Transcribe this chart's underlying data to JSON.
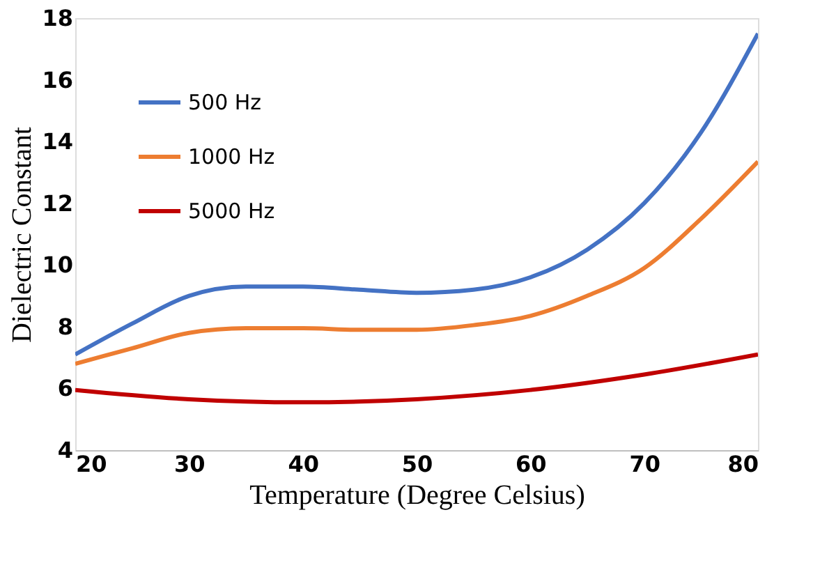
{
  "chart_data": {
    "type": "line",
    "xlabel": "Temperature (Degree Celsius)",
    "ylabel": "Dielectric Constant",
    "xlim": [
      20,
      80
    ],
    "xticks": [
      20,
      30,
      40,
      50,
      60,
      70,
      80
    ],
    "ylim": [
      4,
      18
    ],
    "yticks": [
      4,
      6,
      8,
      10,
      12,
      14,
      16,
      18
    ],
    "grid": false,
    "legend": "top left",
    "marker": "none",
    "line_style": "solid",
    "series": [
      {
        "name": "500 Hz",
        "color": "#4472c4",
        "x": [
          20,
          25,
          30,
          35,
          40,
          45,
          50,
          55,
          60,
          65,
          70,
          75,
          80
        ],
        "values": [
          7.1,
          8.1,
          9.0,
          9.3,
          9.3,
          9.2,
          9.1,
          9.2,
          9.6,
          10.5,
          12.0,
          14.3,
          17.5
        ]
      },
      {
        "name": "1000 Hz",
        "color": "#ed7d31",
        "x": [
          20,
          25,
          30,
          35,
          40,
          45,
          50,
          55,
          60,
          65,
          70,
          75,
          80
        ],
        "values": [
          6.8,
          7.3,
          7.8,
          7.95,
          7.95,
          7.9,
          7.9,
          8.05,
          8.35,
          9.0,
          9.9,
          11.5,
          13.35
        ]
      },
      {
        "name": "5000 Hz",
        "color": "#c00000",
        "x": [
          20,
          30,
          40,
          50,
          60,
          70,
          80
        ],
        "values": [
          5.95,
          5.65,
          5.55,
          5.65,
          5.95,
          6.45,
          7.1
        ]
      }
    ]
  }
}
